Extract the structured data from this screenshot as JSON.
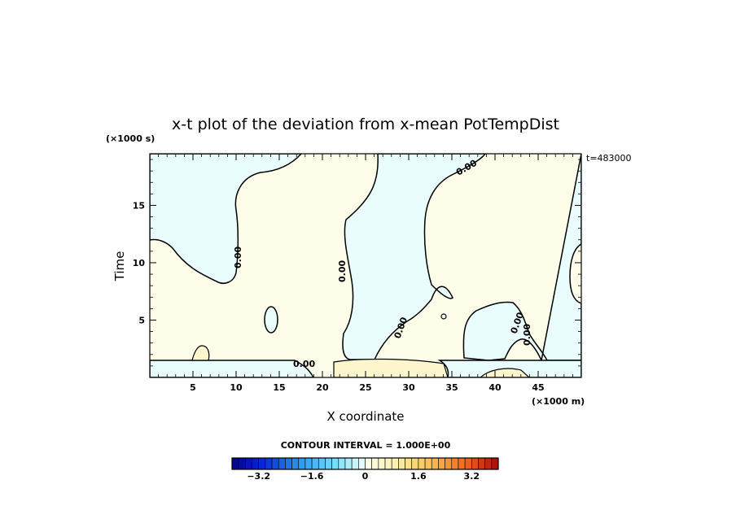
{
  "chart_data": {
    "type": "heatmap",
    "title": "x-t plot of the deviation from x-mean PotTempDist",
    "xlabel": "X coordinate",
    "ylabel": "Time",
    "x_units": "(×1000 m)",
    "y_units": "(×1000 s)",
    "time_label": "t=483000",
    "xlim": [
      0,
      50
    ],
    "ylim": [
      0,
      19.5
    ],
    "x_ticks": [
      "5",
      "10",
      "15",
      "20",
      "25",
      "30",
      "35",
      "40",
      "45"
    ],
    "y_ticks": [
      "5",
      "10",
      "15"
    ],
    "contour_label": "0.00",
    "contour_interval": "CONTOUR INTERVAL = 1.000E+00",
    "colorbar": {
      "min": -4,
      "max": 4,
      "step": 0.2,
      "tick_labels": [
        "−3.2",
        "−1.6",
        "0",
        "1.6",
        "3.2"
      ],
      "tick_values": [
        -3.2,
        -1.6,
        0,
        1.6,
        3.2
      ]
    },
    "regions": [
      {
        "sign": "positive",
        "color": "#fdfdea"
      },
      {
        "sign": "negative",
        "color": "#e9fdfd"
      }
    ]
  }
}
